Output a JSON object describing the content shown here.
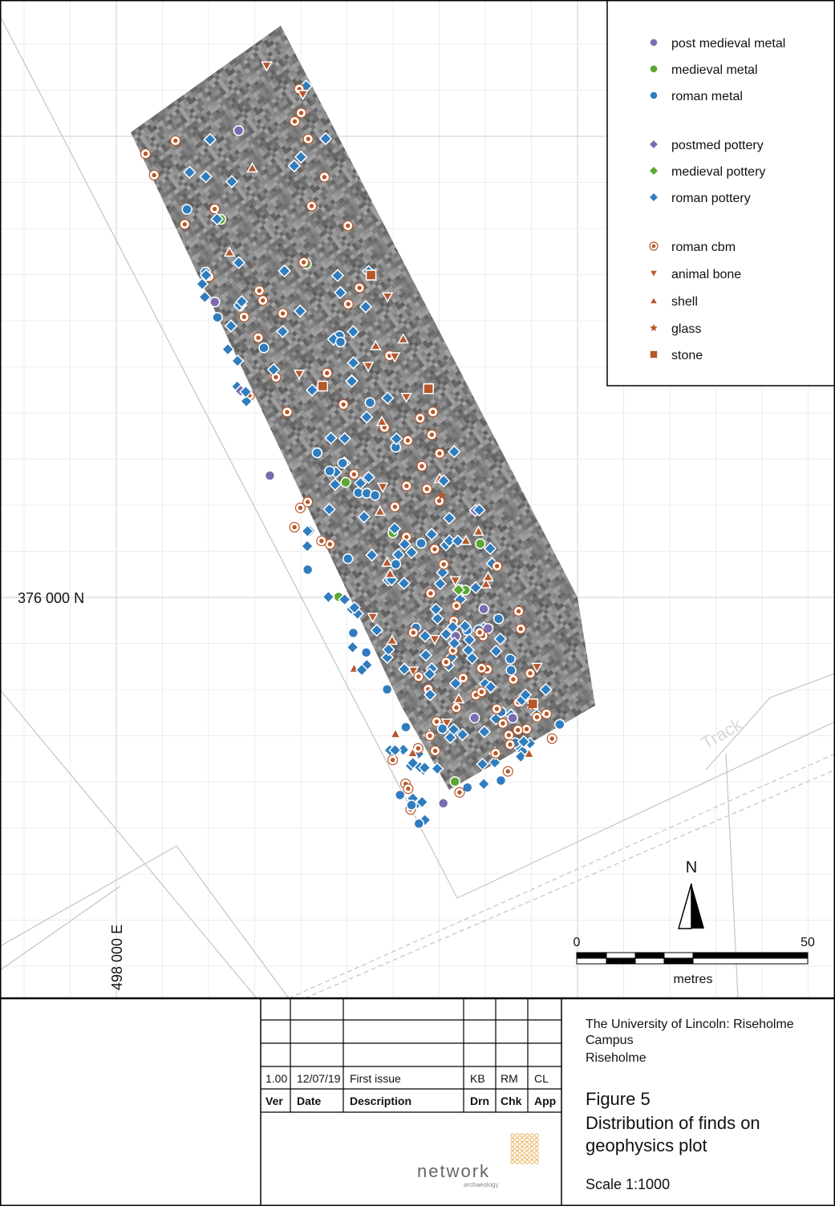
{
  "map": {
    "grid_labels": [
      "376 000 N",
      "498 000 E"
    ],
    "track_label": "Track",
    "north": "N",
    "scale_bar": {
      "start": 0,
      "end": 50,
      "unit": "metres"
    }
  },
  "legend": [
    {
      "label": "post medieval metal",
      "marker": "circle",
      "color": "#7b6bb0"
    },
    {
      "label": "medieval metal",
      "marker": "circle",
      "color": "#5aa832"
    },
    {
      "label": "roman metal",
      "marker": "circle",
      "color": "#2f7dbf"
    },
    {
      "label": "postmed pottery",
      "marker": "diamond",
      "color": "#7b6bb0"
    },
    {
      "label": "medieval pottery",
      "marker": "diamond",
      "color": "#5aa832"
    },
    {
      "label": "roman pottery",
      "marker": "diamond",
      "color": "#2f7dbf"
    },
    {
      "label": "roman cbm",
      "marker": "ring",
      "color": "#b5582a"
    },
    {
      "label": "animal bone",
      "marker": "triangle-down",
      "color": "#b5582a"
    },
    {
      "label": "shell",
      "marker": "triangle-up",
      "color": "#b5582a"
    },
    {
      "label": "glass",
      "marker": "star",
      "color": "#b5582a"
    },
    {
      "label": "stone",
      "marker": "square",
      "color": "#b5582a"
    }
  ],
  "title_block": {
    "revision_header": [
      "Ver",
      "Date",
      "Description",
      "Drn",
      "Chk",
      "App"
    ],
    "revision_rows": [
      [
        "1.00",
        "12/07/19",
        "First issue",
        "KB",
        "RM",
        "CL"
      ]
    ],
    "client": [
      "The University of Lincoln: Riseholme",
      "Campus",
      "Riseholme"
    ],
    "figure": "Figure 5",
    "title": [
      "Distribution of finds on",
      "geophysics plot"
    ],
    "scale": "Scale 1:1000",
    "logo": "network",
    "logo_sub": "archaeology"
  }
}
